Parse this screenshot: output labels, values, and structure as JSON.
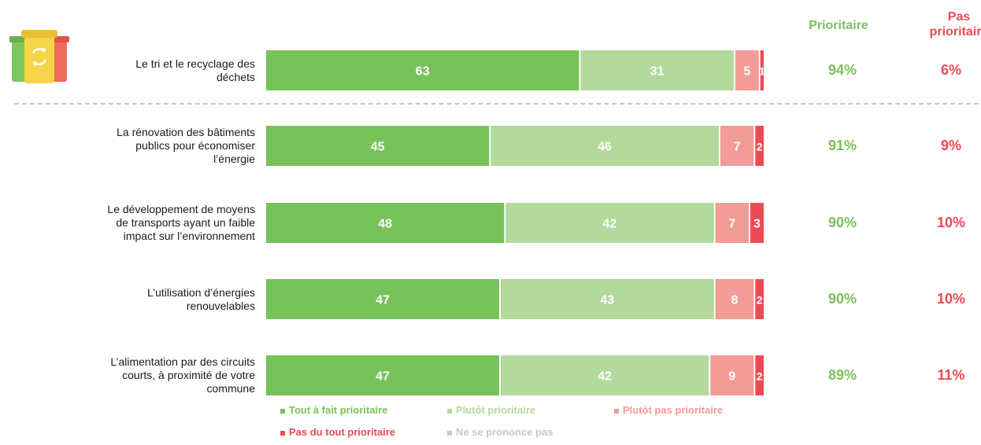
{
  "chart_data": {
    "type": "bar",
    "orientation": "horizontal",
    "stacked": true,
    "categories": [
      "Le tri et le recyclage des déchets",
      "La rénovation des bâtiments publics pour économiser l’énergie",
      "Le développement de moyens de transports ayant un faible impact sur l’environnement",
      "L’utilisation d’énergies renouvelables",
      "L’alimentation par des circuits courts, à proximité de votre commune"
    ],
    "series": [
      {
        "name": "Tout à fait prioritaire",
        "color": "#78c25a",
        "values": [
          63,
          45,
          48,
          47,
          47
        ]
      },
      {
        "name": "Plutôt prioritaire",
        "color": "#b3d99c",
        "values": [
          31,
          46,
          42,
          43,
          42
        ]
      },
      {
        "name": "Plutôt pas prioritaire",
        "color": "#f39b96",
        "values": [
          5,
          7,
          7,
          8,
          9
        ]
      },
      {
        "name": "Pas du tout prioritaire",
        "color": "#ee4a55",
        "values": [
          1,
          2,
          3,
          2,
          2
        ]
      },
      {
        "name": "Ne se prononce pas",
        "color": "#c8c8c8",
        "values": [
          0,
          0,
          0,
          0,
          0
        ]
      }
    ],
    "xlim": [
      0,
      100
    ],
    "summary": {
      "headers": [
        "Prioritaire",
        "Pas prioritaire"
      ],
      "prioritaire": [
        "94%",
        "91%",
        "90%",
        "90%",
        "89%"
      ],
      "pas_prioritaire": [
        "6%",
        "9%",
        "10%",
        "10%",
        "11%"
      ]
    },
    "legend_position": "bottom",
    "grid": false
  },
  "colors": {
    "prioritaire_text": "#78c25a",
    "pas_prioritaire_text": "#ee4a55"
  },
  "icons": [
    "recycling-bins-icon"
  ]
}
